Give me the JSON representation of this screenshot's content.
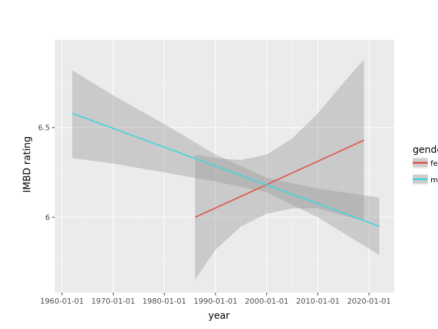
{
  "chart_data": {
    "type": "line",
    "title": "",
    "xlabel": "year",
    "ylabel": "IMBD rating",
    "x_ticks": [
      "1960-01-01",
      "1970-01-01",
      "1980-01-01",
      "1990-01-01",
      "2000-01-01",
      "2010-01-01",
      "2020-01-01"
    ],
    "y_ticks": [
      "6",
      "6.5"
    ],
    "xlim": [
      "1958-08-01",
      "2024-12-01"
    ],
    "ylim": [
      5.58,
      6.99
    ],
    "grid": true,
    "legend": {
      "title": "gender",
      "position": "right",
      "entries": [
        "fe",
        "m"
      ]
    },
    "series": [
      {
        "name": "fe",
        "color": "#db6156",
        "x": [
          "1986-01-01",
          "2019-01-01"
        ],
        "y": [
          6.0,
          6.43
        ],
        "band_x": [
          "1986-01-01",
          "1990-01-01",
          "1995-01-01",
          "2000-01-01",
          "2005-01-01",
          "2010-01-01",
          "2015-01-01",
          "2019-01-01"
        ],
        "band_low": [
          5.65,
          5.82,
          5.95,
          6.02,
          6.05,
          6.05,
          6.01,
          5.98
        ],
        "band_high": [
          6.35,
          6.33,
          6.32,
          6.35,
          6.44,
          6.58,
          6.75,
          6.88
        ]
      },
      {
        "name": "m",
        "color": "#4fd3d9",
        "x": [
          "1962-01-01",
          "2022-01-01"
        ],
        "y": [
          6.58,
          5.95
        ],
        "band_x": [
          "1962-01-01",
          "1970-01-01",
          "1980-01-01",
          "1990-01-01",
          "2000-01-01",
          "2010-01-01",
          "2022-01-01"
        ],
        "band_low": [
          6.33,
          6.3,
          6.25,
          6.2,
          6.14,
          6.0,
          5.79
        ],
        "band_high": [
          6.82,
          6.68,
          6.52,
          6.35,
          6.22,
          6.16,
          6.11
        ]
      }
    ]
  }
}
